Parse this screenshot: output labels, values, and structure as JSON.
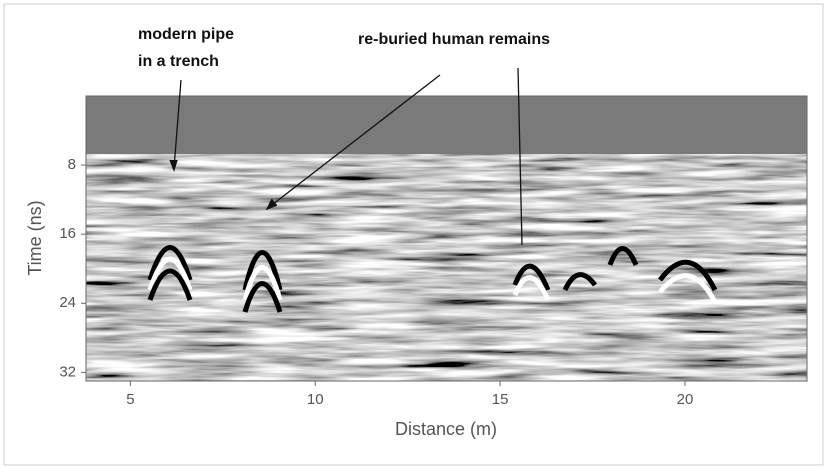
{
  "chart_data": {
    "type": "radargram",
    "annotations": [
      "modern pipe",
      "in a trench",
      "re-buried human remains"
    ],
    "xlabel": "Distance (m)",
    "ylabel": "Time (ns)",
    "xlim": [
      3.8,
      23.3
    ],
    "xticks": [
      5,
      10,
      15,
      20
    ],
    "ylim": [
      0,
      33
    ],
    "yticks": [
      8,
      16,
      24,
      32
    ],
    "y_inverted": true
  }
}
